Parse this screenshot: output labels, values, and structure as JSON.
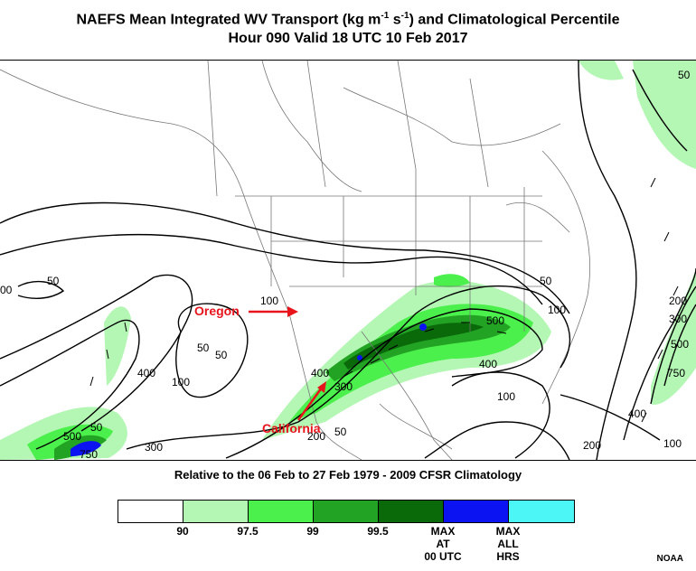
{
  "title": {
    "line1_prefix": "NAEFS Mean Integrated WV Transport (kg m",
    "sup1": "-1",
    "line1_mid": " s",
    "sup2": "-1",
    "line1_suffix": ") and Climatological Percentile",
    "line2": "Hour 090 Valid 18 UTC 10 Feb 2017"
  },
  "annotations": {
    "oregon": "Oregon",
    "california": "California",
    "arrow_color": "#e8141c"
  },
  "contour_labels": [
    {
      "id": "c1",
      "text": "50"
    },
    {
      "id": "c2",
      "text": "50"
    },
    {
      "id": "c3",
      "text": "100"
    },
    {
      "id": "c4",
      "text": "50"
    },
    {
      "id": "c5",
      "text": "100"
    },
    {
      "id": "c6",
      "text": "400"
    },
    {
      "id": "c7",
      "text": "200"
    },
    {
      "id": "c8",
      "text": "300"
    },
    {
      "id": "c9",
      "text": "500"
    },
    {
      "id": "c10",
      "text": "750"
    },
    {
      "id": "c11",
      "text": "400"
    },
    {
      "id": "c12",
      "text": "300"
    },
    {
      "id": "c13",
      "text": "500"
    },
    {
      "id": "c14",
      "text": "400"
    },
    {
      "id": "c15",
      "text": "50"
    },
    {
      "id": "c16",
      "text": "100"
    },
    {
      "id": "c17",
      "text": "100"
    },
    {
      "id": "c18",
      "text": "50"
    },
    {
      "id": "c19",
      "text": "50"
    },
    {
      "id": "c20",
      "text": "200"
    },
    {
      "id": "c21",
      "text": "300"
    },
    {
      "id": "c22",
      "text": "500"
    },
    {
      "id": "c23",
      "text": "750"
    },
    {
      "id": "c24",
      "text": "400"
    },
    {
      "id": "c25",
      "text": "100"
    },
    {
      "id": "c26",
      "text": "200"
    },
    {
      "id": "c27",
      "text": "00"
    },
    {
      "id": "c28",
      "text": "50"
    }
  ],
  "subtitle": "Relative to the 06 Feb to 27 Feb 1979 - 2009 CFSR Climatology",
  "legend": {
    "colors": [
      "#ffffff",
      "#b4f7b4",
      "#4cf04c",
      "#23a323",
      "#0a6a0a",
      "#0b13f2",
      "#4cf6f6"
    ],
    "labels": [
      {
        "text": "90"
      },
      {
        "text": "97.5"
      },
      {
        "text": "99"
      },
      {
        "text": "99.5"
      },
      {
        "text": "MAX\nAT\n00 UTC"
      },
      {
        "text": "MAX\nALL\nHRS"
      }
    ]
  },
  "credit": "NOAA"
}
